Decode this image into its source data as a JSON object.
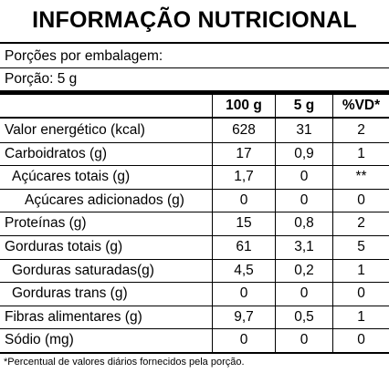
{
  "title": "INFORMAÇÃO NUTRICIONAL",
  "servings_per_package": "Porções por embalagem:",
  "serving_size": "Porção: 5 g",
  "columns": [
    "100 g",
    "5 g",
    "%VD*"
  ],
  "rows": [
    {
      "name": "Valor energético (kcal)",
      "indent": 0,
      "per100g": "628",
      "perServing": "31",
      "vd": "2"
    },
    {
      "name": "Carboidratos (g)",
      "indent": 0,
      "per100g": "17",
      "perServing": "0,9",
      "vd": "1"
    },
    {
      "name": "Açúcares totais (g)",
      "indent": 1,
      "per100g": "1,7",
      "perServing": "0",
      "vd": "**"
    },
    {
      "name": "Açúcares adicionados (g)",
      "indent": 2,
      "per100g": "0",
      "perServing": "0",
      "vd": "0"
    },
    {
      "name": "Proteínas (g)",
      "indent": 0,
      "per100g": "15",
      "perServing": "0,8",
      "vd": "2"
    },
    {
      "name": "Gorduras totais (g)",
      "indent": 0,
      "per100g": "61",
      "perServing": "3,1",
      "vd": "5"
    },
    {
      "name": "Gorduras saturadas(g)",
      "indent": 1,
      "per100g": "4,5",
      "perServing": "0,2",
      "vd": "1"
    },
    {
      "name": "Gorduras trans (g)",
      "indent": 1,
      "per100g": "0",
      "perServing": "0",
      "vd": "0"
    },
    {
      "name": "Fibras alimentares (g)",
      "indent": 0,
      "per100g": "9,7",
      "perServing": "0,5",
      "vd": "1"
    },
    {
      "name": "Sódio (mg)",
      "indent": 0,
      "per100g": "0",
      "perServing": "0",
      "vd": "0"
    }
  ],
  "footnote": "*Percentual de valores diários fornecidos pela porção."
}
